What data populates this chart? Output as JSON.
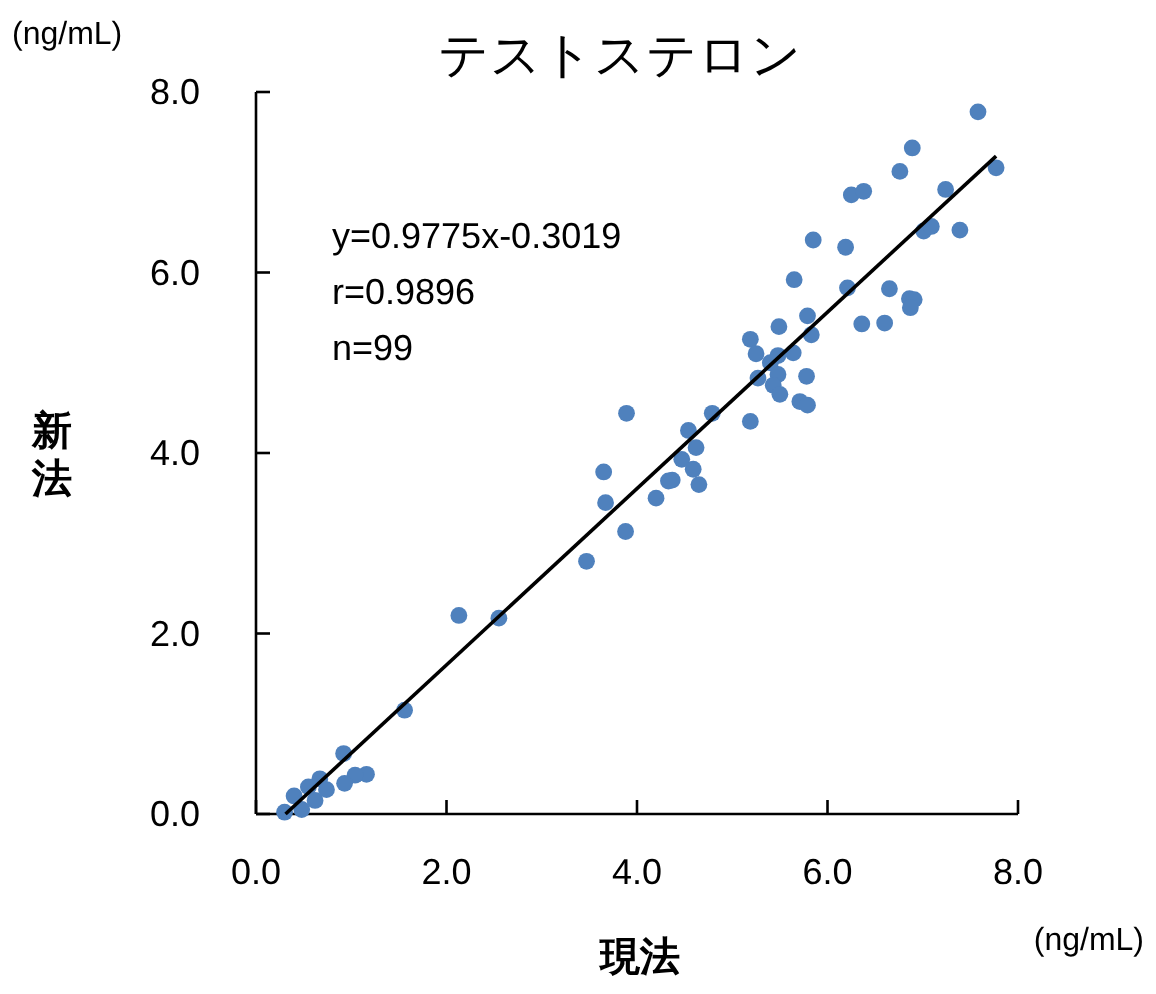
{
  "chart_data": {
    "type": "scatter",
    "title": "テストステロン",
    "xlabel": "現法",
    "ylabel": "新法",
    "annotations": [
      "(ng/mL)",
      "(ng/mL)",
      "y=0.9775x-0.3019",
      "r=0.9896",
      "n=99"
    ],
    "xlim": [
      0,
      8
    ],
    "ylim": [
      0,
      8
    ],
    "xticks": [
      {
        "value": 0,
        "label": "0.0"
      },
      {
        "value": 2,
        "label": "2.0"
      },
      {
        "value": 4,
        "label": "4.0"
      },
      {
        "value": 6,
        "label": "6.0"
      },
      {
        "value": 8,
        "label": "8.0"
      }
    ],
    "yticks": [
      {
        "value": 0,
        "label": "0.0"
      },
      {
        "value": 2,
        "label": "2.0"
      },
      {
        "value": 4,
        "label": "4.0"
      },
      {
        "value": 6,
        "label": "6.0"
      },
      {
        "value": 8,
        "label": "8.0"
      }
    ],
    "series": [
      {
        "type": "scatter",
        "color": "#4f81bd",
        "marker": "circle",
        "x": [
          7.58,
          6.89,
          7.77,
          6.76,
          6.25,
          6.38,
          7.24,
          7.01,
          7.09,
          7.39,
          5.85,
          6.19,
          5.65,
          6.21,
          6.65,
          6.86,
          6.91,
          6.87,
          5.79,
          5.49,
          6.36,
          6.6,
          5.83,
          5.19,
          5.25,
          5.48,
          5.64,
          5.4,
          5.48,
          5.27,
          5.78,
          5.43,
          5.5,
          5.71,
          5.79,
          3.89,
          4.79,
          4.54,
          5.19,
          4.62,
          4.47,
          4.59,
          3.65,
          4.37,
          4.33,
          4.65,
          4.2,
          3.67,
          3.88,
          3.47,
          2.13,
          2.55,
          1.56,
          0.92,
          1.16,
          1.04,
          0.93,
          0.67,
          0.3,
          0.4,
          0.48,
          0.55,
          0.62,
          0.74
        ],
        "values": [
          7.78,
          7.38,
          7.16,
          7.12,
          6.86,
          6.9,
          6.92,
          6.46,
          6.51,
          6.47,
          6.36,
          6.28,
          5.92,
          5.83,
          5.82,
          5.71,
          5.7,
          5.61,
          5.52,
          5.4,
          5.43,
          5.44,
          5.31,
          5.26,
          5.1,
          5.08,
          5.11,
          5.0,
          4.87,
          4.83,
          4.85,
          4.75,
          4.65,
          4.57,
          4.53,
          4.44,
          4.44,
          4.25,
          4.35,
          4.06,
          3.93,
          3.82,
          3.79,
          3.7,
          3.69,
          3.65,
          3.5,
          3.45,
          3.13,
          2.8,
          2.2,
          2.17,
          1.15,
          0.67,
          0.44,
          0.43,
          0.34,
          0.39,
          0.02,
          0.2,
          0.05,
          0.3,
          0.15,
          0.27
        ]
      },
      {
        "type": "line",
        "color": "#000000",
        "marker": "none",
        "line_style": "solid",
        "x": [
          0.31,
          7.77
        ],
        "values": [
          0,
          7.29
        ]
      }
    ]
  }
}
